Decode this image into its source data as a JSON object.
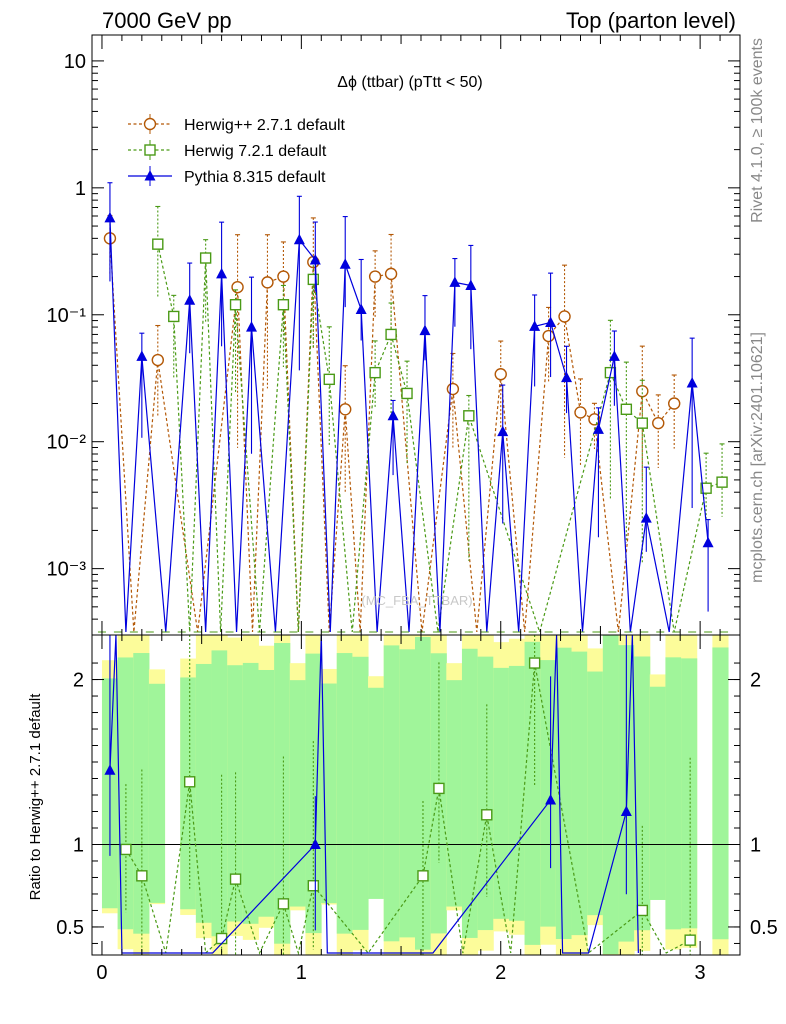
{
  "header": {
    "left": "7000 GeV pp",
    "right": "Top (parton level)",
    "side_top": "Rivet 4.1.0, ≥ 100k events",
    "side_bottom": "mcplots.cern.ch [arXiv:2401.10621]"
  },
  "colors": {
    "herwigpp": "#b35806",
    "herwig7": "#4a9a16",
    "pythia": "#0000dd",
    "band_green": "#a0f59a",
    "band_yellow": "#fcfc9a"
  },
  "chart_data": [
    {
      "type": "line",
      "title": "Δϕ (ttbar) (pTtt < 50)",
      "watermark": "(MC_FBA_TTBAR)",
      "xlim": [
        -0.05,
        3.2
      ],
      "ylim": [
        0.0003,
        16
      ],
      "yscale": "log",
      "ytick_labels": [
        {
          "value": 10,
          "label": "10"
        },
        {
          "value": 1,
          "label": "1"
        },
        {
          "value": 0.1,
          "label": "10⁻¹"
        },
        {
          "value": 0.01,
          "label": "10⁻²"
        },
        {
          "value": 0.001,
          "label": "10⁻³"
        }
      ],
      "legend": [
        {
          "name": "Herwig++ 2.7.1 default",
          "marker": "open-circle",
          "style": "dashed"
        },
        {
          "name": "Herwig 7.2.1 default",
          "marker": "open-square",
          "style": "dashed"
        },
        {
          "name": "Pythia 8.315 default",
          "marker": "filled-triangle",
          "style": "solid"
        }
      ],
      "series": [
        {
          "name": "Herwig++ 2.7.1 default",
          "x": [
            0.04,
            0.28,
            0.68,
            0.83,
            0.91,
            1.06,
            1.22,
            1.37,
            1.45,
            1.76,
            2.0,
            2.24,
            2.32,
            2.4,
            2.47,
            2.71,
            2.79,
            2.87
          ],
          "y": [
            0.4,
            0.044,
            0.165,
            0.18,
            0.2,
            0.26,
            0.018,
            0.2,
            0.21,
            0.026,
            0.034,
            0.068,
            0.097,
            0.017,
            0.015,
            0.025,
            0.014,
            0.02
          ]
        },
        {
          "name": "Herwig 7.2.1 default",
          "x": [
            0.28,
            0.36,
            0.52,
            0.67,
            0.91,
            1.06,
            1.14,
            1.37,
            1.45,
            1.53,
            1.84,
            2.55,
            2.63,
            2.71,
            3.03,
            3.11
          ],
          "y": [
            0.36,
            0.097,
            0.28,
            0.12,
            0.12,
            0.19,
            0.031,
            0.035,
            0.07,
            0.024,
            0.016,
            0.035,
            0.018,
            0.014,
            0.0043,
            0.0048
          ]
        },
        {
          "name": "Pythia 8.315 default",
          "x": [
            0.04,
            0.2,
            0.44,
            0.6,
            0.75,
            0.99,
            1.07,
            1.22,
            1.3,
            1.46,
            1.62,
            1.77,
            1.85,
            2.01,
            2.17,
            2.25,
            2.33,
            2.49,
            2.57,
            2.73,
            2.96,
            3.04
          ],
          "y": [
            0.58,
            0.047,
            0.13,
            0.21,
            0.08,
            0.39,
            0.27,
            0.25,
            0.11,
            0.016,
            0.075,
            0.18,
            0.17,
            0.012,
            0.081,
            0.087,
            0.032,
            0.0125,
            0.047,
            0.0025,
            0.029,
            0.0016
          ]
        }
      ]
    },
    {
      "type": "line",
      "ylabel": "Ratio to Herwig++ 2.7.1 default",
      "xlim": [
        -0.05,
        3.2
      ],
      "ylim": [
        0.33,
        2.27
      ],
      "xtick_labels": [
        "0",
        "1",
        "2",
        "3"
      ],
      "ytick_labels": [
        "0.5",
        "1",
        "2"
      ],
      "series": [
        {
          "name": "Herwig 7.2.1 default",
          "x": [
            0.12,
            0.2,
            0.44,
            0.6,
            0.67,
            0.91,
            1.06,
            1.61,
            1.69,
            1.93,
            2.17,
            2.71,
            2.95
          ],
          "y": [
            0.97,
            0.81,
            1.38,
            0.43,
            0.79,
            0.64,
            0.75,
            0.81,
            1.34,
            1.18,
            2.1,
            0.6,
            0.42
          ]
        },
        {
          "name": "Pythia 8.315 default",
          "x": [
            0.04,
            1.07,
            2.25,
            2.63
          ],
          "y": [
            1.45,
            1.0,
            1.27,
            1.2
          ]
        }
      ]
    }
  ]
}
